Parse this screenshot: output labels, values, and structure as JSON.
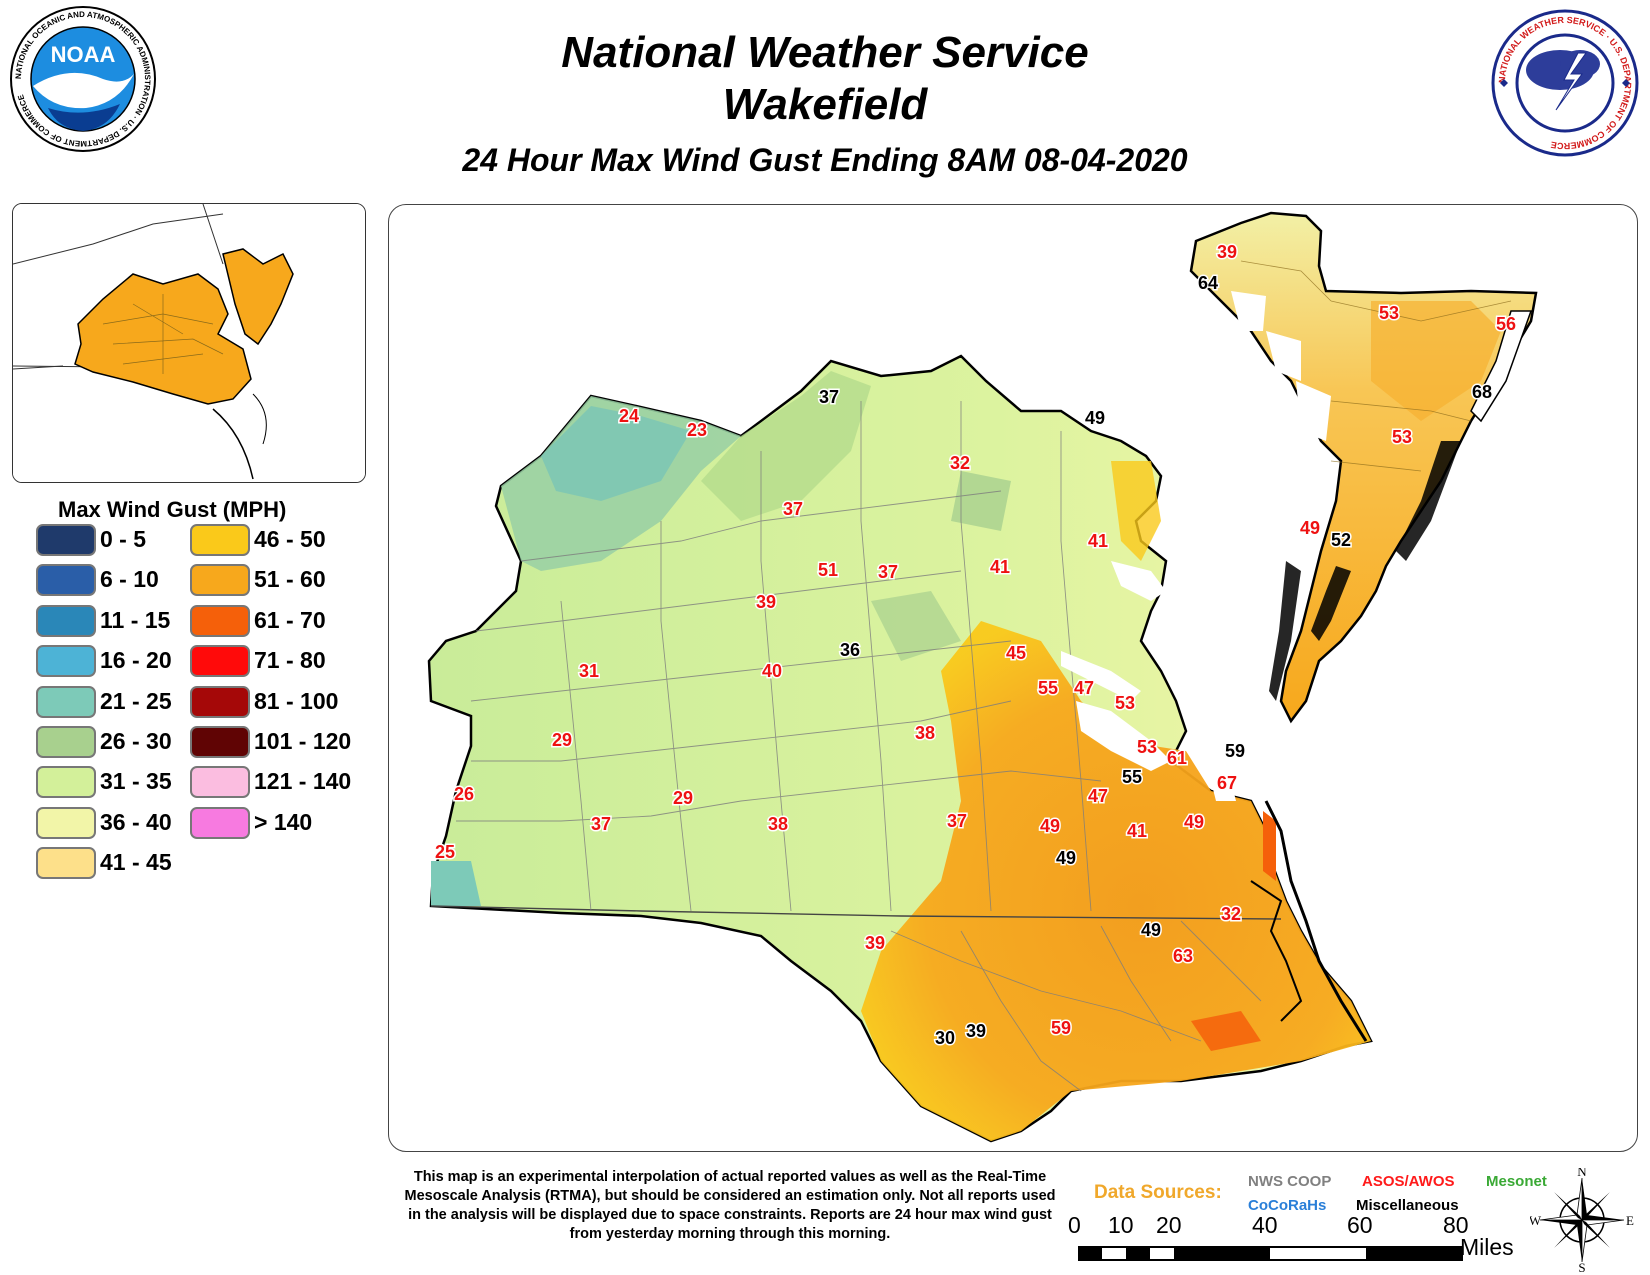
{
  "header": {
    "title_line1": "National Weather Service",
    "title_line2": "Wakefield",
    "subtitle": "24 Hour Max Wind Gust Ending 8AM 08-04-2020"
  },
  "logos": {
    "noaa_text": "NOAA",
    "noaa_ring": "NATIONAL OCEANIC AND ATMOSPHERIC ADMINISTRATION · U.S. DEPARTMENT OF COMMERCE",
    "nws_ring": "NATIONAL WEATHER SERVICE · U.S. DEPARTMENT OF COMMERCE"
  },
  "legend": {
    "title": "Max Wind Gust (MPH)",
    "items": [
      {
        "label": "0 - 5",
        "color": "#1f3a6b"
      },
      {
        "label": "6 - 10",
        "color": "#2a5ea8"
      },
      {
        "label": "11 - 15",
        "color": "#2a87b8"
      },
      {
        "label": "16 - 20",
        "color": "#4db3d6"
      },
      {
        "label": "21 - 25",
        "color": "#7dcab8"
      },
      {
        "label": "26 - 30",
        "color": "#a8d08e"
      },
      {
        "label": "31 - 35",
        "color": "#d3f09a"
      },
      {
        "label": "36 - 40",
        "color": "#f2f5a8"
      },
      {
        "label": "41 - 45",
        "color": "#fde08a"
      },
      {
        "label": "46 - 50",
        "color": "#fac91a"
      },
      {
        "label": "51 - 60",
        "color": "#f7a81c"
      },
      {
        "label": "61 - 70",
        "color": "#f5600a"
      },
      {
        "label": "71 - 80",
        "color": "#ff0a0a"
      },
      {
        "label": "81 - 100",
        "color": "#a50808"
      },
      {
        "label": "101 - 120",
        "color": "#600404"
      },
      {
        "label": "121 - 140",
        "color": "#fbbde0"
      },
      {
        "label": "> 140",
        "color": "#f77ae0"
      }
    ]
  },
  "map": {
    "station_labels": [
      {
        "value": "39",
        "src": "asos"
      },
      {
        "value": "64",
        "src": "coop"
      },
      {
        "value": "53",
        "src": "asos"
      },
      {
        "value": "56",
        "src": "asos"
      },
      {
        "value": "68",
        "src": "coop"
      },
      {
        "value": "53",
        "src": "asos"
      },
      {
        "value": "49",
        "src": "asos"
      },
      {
        "value": "52",
        "src": "coop"
      },
      {
        "value": "24",
        "src": "asos"
      },
      {
        "value": "23",
        "src": "asos"
      },
      {
        "value": "37",
        "src": "coop"
      },
      {
        "value": "49",
        "src": "coop"
      },
      {
        "value": "32",
        "src": "asos"
      },
      {
        "value": "37",
        "src": "asos"
      },
      {
        "value": "41",
        "src": "asos"
      },
      {
        "value": "51",
        "src": "asos"
      },
      {
        "value": "37",
        "src": "asos"
      },
      {
        "value": "41",
        "src": "asos"
      },
      {
        "value": "39",
        "src": "asos"
      },
      {
        "value": "36",
        "src": "coop"
      },
      {
        "value": "31",
        "src": "asos"
      },
      {
        "value": "40",
        "src": "asos"
      },
      {
        "value": "45",
        "src": "asos"
      },
      {
        "value": "55",
        "src": "asos"
      },
      {
        "value": "47",
        "src": "asos"
      },
      {
        "value": "53",
        "src": "asos"
      },
      {
        "value": "29",
        "src": "asos"
      },
      {
        "value": "38",
        "src": "asos"
      },
      {
        "value": "53",
        "src": "asos"
      },
      {
        "value": "61",
        "src": "asos"
      },
      {
        "value": "59",
        "src": "coop"
      },
      {
        "value": "55",
        "src": "coop"
      },
      {
        "value": "67",
        "src": "asos"
      },
      {
        "value": "26",
        "src": "asos"
      },
      {
        "value": "47",
        "src": "asos"
      },
      {
        "value": "29",
        "src": "asos"
      },
      {
        "value": "37",
        "src": "asos"
      },
      {
        "value": "38",
        "src": "asos"
      },
      {
        "value": "37",
        "src": "asos"
      },
      {
        "value": "49",
        "src": "asos"
      },
      {
        "value": "41",
        "src": "asos"
      },
      {
        "value": "49",
        "src": "asos"
      },
      {
        "value": "25",
        "src": "asos"
      },
      {
        "value": "49",
        "src": "coop"
      },
      {
        "value": "32",
        "src": "asos"
      },
      {
        "value": "39",
        "src": "asos"
      },
      {
        "value": "49",
        "src": "coop"
      },
      {
        "value": "63",
        "src": "asos"
      },
      {
        "value": "59",
        "src": "asos"
      },
      {
        "value": "30",
        "src": "coop"
      },
      {
        "value": "39",
        "src": "coop"
      }
    ]
  },
  "footer": {
    "note": "This map is an experimental interpolation of actual reported values as well as the Real-Time Mesoscale Analysis (RTMA), but should be considered an estimation only. Not all reports used in the analysis will be displayed due to space constraints. Reports are 24 hour max wind gust from yesterday morning through this morning.",
    "data_sources_label": "Data Sources:",
    "sources": [
      {
        "label": "NWS COOP",
        "color": "#808080"
      },
      {
        "label": "ASOS/AWOS",
        "color": "#ff1a1a"
      },
      {
        "label": "Mesonet",
        "color": "#3aa935"
      },
      {
        "label": "CoCoRaHs",
        "color": "#2a7fd8"
      },
      {
        "label": "Miscellaneous",
        "color": "#000000"
      }
    ],
    "scale_ticks": [
      "0",
      "10",
      "20",
      "40",
      "60",
      "80"
    ],
    "scale_unit": "Miles",
    "compass": {
      "n": "N",
      "s": "S",
      "e": "E",
      "w": "W"
    }
  }
}
